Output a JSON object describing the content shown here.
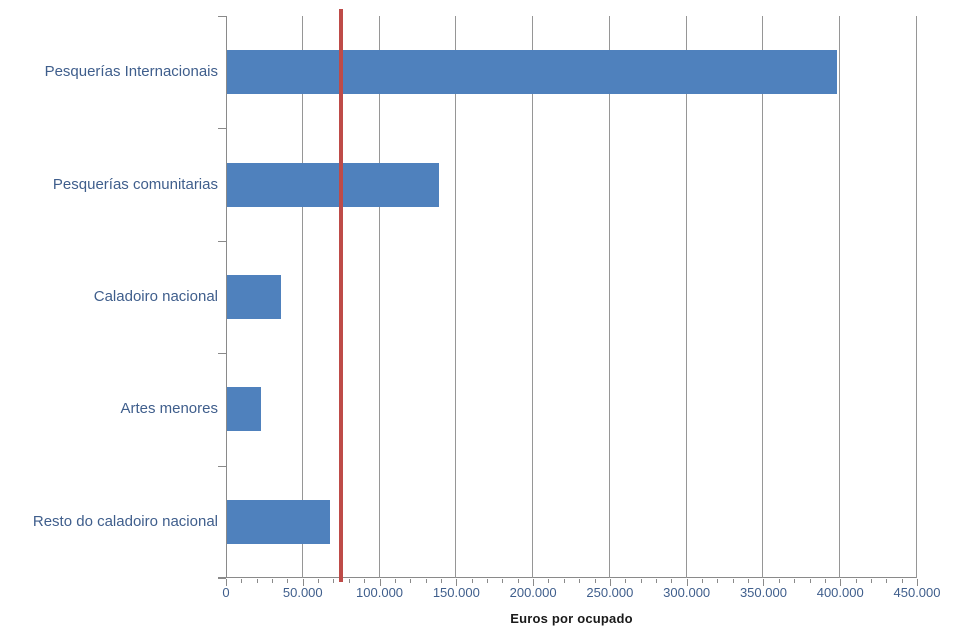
{
  "chart_data": {
    "type": "bar",
    "orientation": "horizontal",
    "title": "",
    "xlabel": "Euros por ocupado",
    "ylabel": "",
    "categories": [
      "Pesquerías Internacionais",
      "Pesquerías comunitarias",
      "Caladoiro nacional",
      "Artes menores",
      "Resto do caladoiro nacional"
    ],
    "values": [
      397000,
      138000,
      35000,
      22000,
      67000
    ],
    "xlim": [
      0,
      450000
    ],
    "x_major_unit": 50000,
    "x_minor_unit": 10000,
    "x_tick_labels": [
      "0",
      "50.000",
      "100.000",
      "150.000",
      "200.000",
      "250.000",
      "300.000",
      "350.000",
      "400.000",
      "450.000"
    ],
    "grid": "vertical-major",
    "legend": "none",
    "reference_line": {
      "orientation": "vertical",
      "value": 75000,
      "color": "#BE4B48"
    },
    "colors": {
      "bar": "#4F81BD",
      "gridline": "#969696",
      "axis": "#8A8A8A",
      "tick": "#8A8A8A",
      "label_text": "#3F5E8C"
    }
  }
}
